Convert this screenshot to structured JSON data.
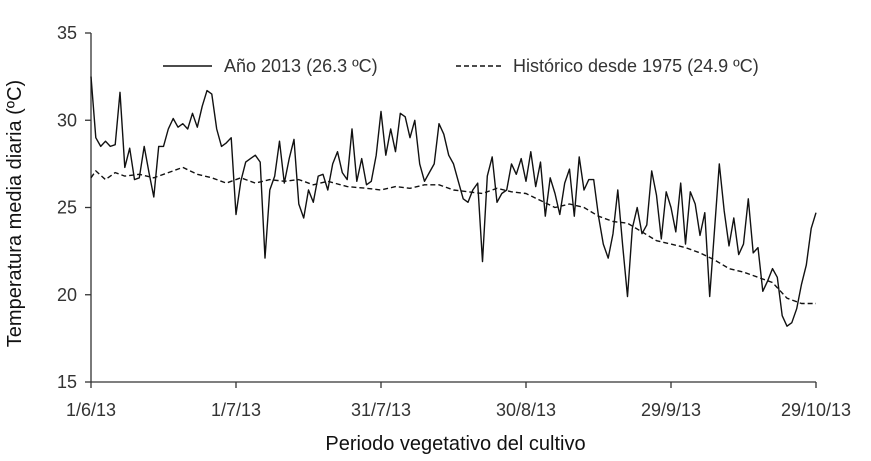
{
  "chart_data": {
    "type": "line",
    "xlabel": "Periodo vegetativo del cultivo",
    "ylabel": "Temperatura media diaria (ºC)",
    "ylim": [
      15,
      35
    ],
    "yticks": [
      "15",
      "20",
      "25",
      "30",
      "35"
    ],
    "xlim": [
      "2013-06-01",
      "2013-10-29"
    ],
    "xticks": [
      {
        "date": "2013-06-01",
        "label": "1/6/13"
      },
      {
        "date": "2013-07-01",
        "label": "1/7/13"
      },
      {
        "date": "2013-07-31",
        "label": "31/7/13"
      },
      {
        "date": "2013-08-30",
        "label": "30/8/13"
      },
      {
        "date": "2013-09-29",
        "label": "29/9/13"
      },
      {
        "date": "2013-10-29",
        "label": "29/10/13"
      }
    ],
    "grid": false,
    "legend_position": "top-right",
    "series": [
      {
        "name": "Año 2013 (26.3 ºC)",
        "style": "solid",
        "color": "#111111",
        "points": [
          [
            "2013-06-01",
            32.5
          ],
          [
            "2013-06-02",
            29.0
          ],
          [
            "2013-06-03",
            28.5
          ],
          [
            "2013-06-04",
            28.8
          ],
          [
            "2013-06-05",
            28.5
          ],
          [
            "2013-06-06",
            28.6
          ],
          [
            "2013-06-07",
            31.6
          ],
          [
            "2013-06-08",
            27.3
          ],
          [
            "2013-06-09",
            28.4
          ],
          [
            "2013-06-10",
            26.6
          ],
          [
            "2013-06-11",
            26.7
          ],
          [
            "2013-06-12",
            28.5
          ],
          [
            "2013-06-13",
            27.0
          ],
          [
            "2013-06-14",
            25.6
          ],
          [
            "2013-06-15",
            28.5
          ],
          [
            "2013-06-16",
            28.5
          ],
          [
            "2013-06-17",
            29.5
          ],
          [
            "2013-06-18",
            30.1
          ],
          [
            "2013-06-19",
            29.6
          ],
          [
            "2013-06-20",
            29.8
          ],
          [
            "2013-06-21",
            29.5
          ],
          [
            "2013-06-22",
            30.4
          ],
          [
            "2013-06-23",
            29.6
          ],
          [
            "2013-06-24",
            30.8
          ],
          [
            "2013-06-25",
            31.7
          ],
          [
            "2013-06-26",
            31.5
          ],
          [
            "2013-06-27",
            29.5
          ],
          [
            "2013-06-28",
            28.5
          ],
          [
            "2013-06-29",
            28.7
          ],
          [
            "2013-06-30",
            29.0
          ],
          [
            "2013-07-01",
            24.6
          ],
          [
            "2013-07-02",
            26.5
          ],
          [
            "2013-07-03",
            27.6
          ],
          [
            "2013-07-04",
            27.8
          ],
          [
            "2013-07-05",
            28.0
          ],
          [
            "2013-07-06",
            27.6
          ],
          [
            "2013-07-07",
            22.1
          ],
          [
            "2013-07-08",
            26.0
          ],
          [
            "2013-07-09",
            26.8
          ],
          [
            "2013-07-10",
            28.8
          ],
          [
            "2013-07-11",
            26.4
          ],
          [
            "2013-07-12",
            27.8
          ],
          [
            "2013-07-13",
            28.9
          ],
          [
            "2013-07-14",
            25.2
          ],
          [
            "2013-07-15",
            24.4
          ],
          [
            "2013-07-16",
            26.0
          ],
          [
            "2013-07-17",
            25.3
          ],
          [
            "2013-07-18",
            26.8
          ],
          [
            "2013-07-19",
            26.9
          ],
          [
            "2013-07-20",
            26.0
          ],
          [
            "2013-07-21",
            27.5
          ],
          [
            "2013-07-22",
            28.2
          ],
          [
            "2013-07-23",
            27.0
          ],
          [
            "2013-07-24",
            26.6
          ],
          [
            "2013-07-25",
            29.5
          ],
          [
            "2013-07-26",
            26.5
          ],
          [
            "2013-07-27",
            27.8
          ],
          [
            "2013-07-28",
            26.3
          ],
          [
            "2013-07-29",
            26.5
          ],
          [
            "2013-07-30",
            28.0
          ],
          [
            "2013-07-31",
            30.5
          ],
          [
            "2013-08-01",
            28.0
          ],
          [
            "2013-08-02",
            29.5
          ],
          [
            "2013-08-03",
            28.2
          ],
          [
            "2013-08-04",
            30.4
          ],
          [
            "2013-08-05",
            30.2
          ],
          [
            "2013-08-06",
            29.0
          ],
          [
            "2013-08-07",
            30.0
          ],
          [
            "2013-08-08",
            27.5
          ],
          [
            "2013-08-09",
            26.5
          ],
          [
            "2013-08-10",
            27.0
          ],
          [
            "2013-08-11",
            27.5
          ],
          [
            "2013-08-12",
            29.8
          ],
          [
            "2013-08-13",
            29.2
          ],
          [
            "2013-08-14",
            28.0
          ],
          [
            "2013-08-15",
            27.5
          ],
          [
            "2013-08-16",
            26.5
          ],
          [
            "2013-08-17",
            25.5
          ],
          [
            "2013-08-18",
            25.3
          ],
          [
            "2013-08-19",
            26.0
          ],
          [
            "2013-08-20",
            26.4
          ],
          [
            "2013-08-21",
            21.9
          ],
          [
            "2013-08-22",
            26.8
          ],
          [
            "2013-08-23",
            27.9
          ],
          [
            "2013-08-24",
            25.3
          ],
          [
            "2013-08-25",
            25.8
          ],
          [
            "2013-08-26",
            26.0
          ],
          [
            "2013-08-27",
            27.5
          ],
          [
            "2013-08-28",
            26.9
          ],
          [
            "2013-08-29",
            27.8
          ],
          [
            "2013-08-30",
            26.5
          ],
          [
            "2013-08-31",
            28.2
          ],
          [
            "2013-09-01",
            26.2
          ],
          [
            "2013-09-02",
            27.6
          ],
          [
            "2013-09-03",
            24.5
          ],
          [
            "2013-09-04",
            26.7
          ],
          [
            "2013-09-05",
            25.8
          ],
          [
            "2013-09-06",
            24.6
          ],
          [
            "2013-09-07",
            26.4
          ],
          [
            "2013-09-08",
            27.2
          ],
          [
            "2013-09-09",
            24.5
          ],
          [
            "2013-09-10",
            27.9
          ],
          [
            "2013-09-11",
            26.0
          ],
          [
            "2013-09-12",
            26.6
          ],
          [
            "2013-09-13",
            26.6
          ],
          [
            "2013-09-14",
            24.5
          ],
          [
            "2013-09-15",
            22.9
          ],
          [
            "2013-09-16",
            22.1
          ],
          [
            "2013-09-17",
            23.5
          ],
          [
            "2013-09-18",
            26.0
          ],
          [
            "2013-09-19",
            22.8
          ],
          [
            "2013-09-20",
            19.9
          ],
          [
            "2013-09-21",
            23.8
          ],
          [
            "2013-09-22",
            25.0
          ],
          [
            "2013-09-23",
            23.5
          ],
          [
            "2013-09-24",
            24.0
          ],
          [
            "2013-09-25",
            27.1
          ],
          [
            "2013-09-26",
            25.7
          ],
          [
            "2013-09-27",
            23.2
          ],
          [
            "2013-09-28",
            25.9
          ],
          [
            "2013-09-29",
            25.0
          ],
          [
            "2013-09-30",
            23.6
          ],
          [
            "2013-10-01",
            26.4
          ],
          [
            "2013-10-02",
            22.9
          ],
          [
            "2013-10-03",
            25.9
          ],
          [
            "2013-10-04",
            25.2
          ],
          [
            "2013-10-05",
            23.4
          ],
          [
            "2013-10-06",
            24.7
          ],
          [
            "2013-10-07",
            19.9
          ],
          [
            "2013-10-08",
            23.7
          ],
          [
            "2013-10-09",
            27.5
          ],
          [
            "2013-10-10",
            24.8
          ],
          [
            "2013-10-11",
            22.8
          ],
          [
            "2013-10-12",
            24.4
          ],
          [
            "2013-10-13",
            22.3
          ],
          [
            "2013-10-14",
            22.9
          ],
          [
            "2013-10-15",
            25.5
          ],
          [
            "2013-10-16",
            22.4
          ],
          [
            "2013-10-17",
            22.7
          ],
          [
            "2013-10-18",
            20.2
          ],
          [
            "2013-10-19",
            20.8
          ],
          [
            "2013-10-20",
            21.5
          ],
          [
            "2013-10-21",
            21.0
          ],
          [
            "2013-10-22",
            18.8
          ],
          [
            "2013-10-23",
            18.2
          ],
          [
            "2013-10-24",
            18.4
          ],
          [
            "2013-10-25",
            19.2
          ],
          [
            "2013-10-26",
            20.6
          ],
          [
            "2013-10-27",
            21.7
          ],
          [
            "2013-10-28",
            23.8
          ],
          [
            "2013-10-29",
            24.7
          ]
        ]
      },
      {
        "name": "Histórico desde 1975 (24.9 ºC)",
        "style": "dashed",
        "color": "#111111",
        "points": [
          [
            "2013-06-01",
            26.7
          ],
          [
            "2013-06-02",
            27.1
          ],
          [
            "2013-06-04",
            26.6
          ],
          [
            "2013-06-06",
            27.0
          ],
          [
            "2013-06-08",
            26.8
          ],
          [
            "2013-06-11",
            26.9
          ],
          [
            "2013-06-14",
            26.7
          ],
          [
            "2013-06-17",
            27.0
          ],
          [
            "2013-06-20",
            27.3
          ],
          [
            "2013-06-23",
            26.9
          ],
          [
            "2013-06-26",
            26.7
          ],
          [
            "2013-06-29",
            26.4
          ],
          [
            "2013-07-02",
            26.7
          ],
          [
            "2013-07-05",
            26.4
          ],
          [
            "2013-07-08",
            26.6
          ],
          [
            "2013-07-11",
            26.5
          ],
          [
            "2013-07-14",
            26.6
          ],
          [
            "2013-07-17",
            26.3
          ],
          [
            "2013-07-20",
            26.5
          ],
          [
            "2013-07-24",
            26.2
          ],
          [
            "2013-07-28",
            26.1
          ],
          [
            "2013-07-31",
            26.0
          ],
          [
            "2013-08-03",
            26.2
          ],
          [
            "2013-08-06",
            26.1
          ],
          [
            "2013-08-09",
            26.3
          ],
          [
            "2013-08-12",
            26.3
          ],
          [
            "2013-08-15",
            26.0
          ],
          [
            "2013-08-18",
            25.9
          ],
          [
            "2013-08-21",
            25.8
          ],
          [
            "2013-08-24",
            26.1
          ],
          [
            "2013-08-27",
            25.9
          ],
          [
            "2013-08-30",
            25.8
          ],
          [
            "2013-09-02",
            25.4
          ],
          [
            "2013-09-05",
            25.0
          ],
          [
            "2013-09-08",
            25.2
          ],
          [
            "2013-09-11",
            25.0
          ],
          [
            "2013-09-14",
            24.5
          ],
          [
            "2013-09-17",
            24.2
          ],
          [
            "2013-09-20",
            24.1
          ],
          [
            "2013-09-23",
            23.6
          ],
          [
            "2013-09-26",
            23.1
          ],
          [
            "2013-09-29",
            22.9
          ],
          [
            "2013-10-02",
            22.7
          ],
          [
            "2013-10-05",
            22.4
          ],
          [
            "2013-10-08",
            22.0
          ],
          [
            "2013-10-11",
            21.5
          ],
          [
            "2013-10-14",
            21.3
          ],
          [
            "2013-10-17",
            21.0
          ],
          [
            "2013-10-20",
            20.7
          ],
          [
            "2013-10-23",
            19.8
          ],
          [
            "2013-10-26",
            19.5
          ],
          [
            "2013-10-29",
            19.5
          ]
        ]
      }
    ]
  }
}
